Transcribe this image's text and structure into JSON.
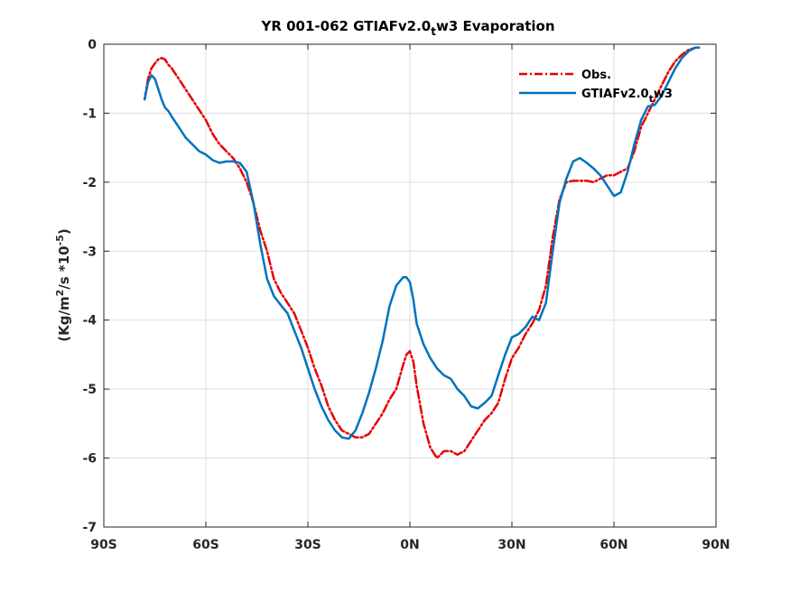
{
  "chart_data": {
    "type": "line",
    "title_main": "YR 001-062 GTIAFv2.0",
    "title_sub": "t",
    "title_tail": "w3 Evaporation",
    "ylabel_main": "(Kg/m",
    "ylabel_sup1": "2",
    "ylabel_mid": "/s *10",
    "ylabel_sup2": "-5",
    "ylabel_tail": ")",
    "xlim": [
      -90,
      90
    ],
    "ylim": [
      -7,
      0
    ],
    "xticks": [
      -90,
      -60,
      -30,
      0,
      30,
      60,
      90
    ],
    "xtick_labels": [
      "90S",
      "60S",
      "30S",
      "0N",
      "30N",
      "60N",
      "90N"
    ],
    "yticks": [
      -7,
      -6,
      -5,
      -4,
      -3,
      -2,
      -1,
      0
    ],
    "ytick_labels": [
      "-7",
      "-6",
      "-5",
      "-4",
      "-3",
      "-2",
      "-1",
      "0"
    ],
    "grid": true,
    "legend_position": "top-right",
    "series": [
      {
        "name": "Obs.",
        "color": "#e60000",
        "dash": "dash-dot",
        "x": [
          -78,
          -77,
          -76,
          -75,
          -74,
          -73,
          -72,
          -71,
          -70,
          -68,
          -66,
          -64,
          -62,
          -60,
          -58,
          -56,
          -54,
          -52,
          -50,
          -48,
          -46,
          -44,
          -42,
          -40,
          -38,
          -36,
          -34,
          -32,
          -30,
          -28,
          -26,
          -24,
          -22,
          -20,
          -18,
          -16,
          -14,
          -12,
          -10,
          -8,
          -6,
          -4,
          -2,
          -1,
          0,
          1,
          2,
          4,
          6,
          8,
          10,
          12,
          14,
          16,
          18,
          20,
          22,
          24,
          26,
          28,
          30,
          32,
          34,
          36,
          38,
          40,
          42,
          44,
          46,
          48,
          50,
          52,
          54,
          56,
          58,
          60,
          62,
          64,
          66,
          68,
          70,
          72,
          74,
          76,
          78,
          80,
          82,
          84,
          85
        ],
        "y": [
          -0.8,
          -0.5,
          -0.35,
          -0.28,
          -0.22,
          -0.2,
          -0.22,
          -0.3,
          -0.35,
          -0.5,
          -0.65,
          -0.8,
          -0.95,
          -1.1,
          -1.3,
          -1.45,
          -1.55,
          -1.65,
          -1.8,
          -2.0,
          -2.3,
          -2.7,
          -3.0,
          -3.4,
          -3.6,
          -3.75,
          -3.9,
          -4.15,
          -4.4,
          -4.7,
          -4.95,
          -5.25,
          -5.45,
          -5.6,
          -5.65,
          -5.7,
          -5.7,
          -5.65,
          -5.5,
          -5.35,
          -5.15,
          -5.0,
          -4.65,
          -4.5,
          -4.45,
          -4.6,
          -4.95,
          -5.5,
          -5.85,
          -6.0,
          -5.9,
          -5.9,
          -5.95,
          -5.9,
          -5.75,
          -5.6,
          -5.45,
          -5.35,
          -5.2,
          -4.85,
          -4.55,
          -4.4,
          -4.2,
          -4.05,
          -3.85,
          -3.5,
          -2.8,
          -2.25,
          -2.0,
          -1.98,
          -1.98,
          -1.98,
          -2.0,
          -1.95,
          -1.9,
          -1.9,
          -1.85,
          -1.8,
          -1.55,
          -1.2,
          -1.0,
          -0.8,
          -0.6,
          -0.4,
          -0.25,
          -0.15,
          -0.08,
          -0.05,
          -0.05
        ]
      },
      {
        "name": "GTIAFv2.0",
        "name_sub": "t",
        "name_tail": "w3",
        "color": "#0072bd",
        "dash": "solid",
        "x": [
          -78,
          -77,
          -76,
          -75,
          -74,
          -73,
          -72,
          -71,
          -70,
          -68,
          -66,
          -64,
          -62,
          -60,
          -58,
          -56,
          -54,
          -52,
          -50,
          -48,
          -46,
          -44,
          -42,
          -40,
          -38,
          -36,
          -34,
          -32,
          -30,
          -28,
          -26,
          -24,
          -22,
          -20,
          -18,
          -16,
          -14,
          -12,
          -10,
          -8,
          -6,
          -4,
          -2,
          -1,
          0,
          1,
          2,
          4,
          6,
          8,
          10,
          12,
          14,
          16,
          18,
          20,
          22,
          24,
          26,
          28,
          30,
          32,
          34,
          36,
          38,
          40,
          42,
          44,
          46,
          48,
          50,
          52,
          54,
          56,
          58,
          60,
          62,
          64,
          66,
          68,
          70,
          72,
          74,
          76,
          78,
          80,
          82,
          84,
          85
        ],
        "y": [
          -0.8,
          -0.55,
          -0.45,
          -0.5,
          -0.65,
          -0.8,
          -0.92,
          -0.97,
          -1.05,
          -1.2,
          -1.35,
          -1.45,
          -1.55,
          -1.6,
          -1.68,
          -1.72,
          -1.7,
          -1.7,
          -1.72,
          -1.85,
          -2.3,
          -2.9,
          -3.4,
          -3.65,
          -3.78,
          -3.9,
          -4.15,
          -4.4,
          -4.7,
          -5.0,
          -5.25,
          -5.45,
          -5.6,
          -5.7,
          -5.72,
          -5.6,
          -5.35,
          -5.05,
          -4.7,
          -4.3,
          -3.8,
          -3.5,
          -3.38,
          -3.38,
          -3.45,
          -3.7,
          -4.05,
          -4.35,
          -4.55,
          -4.7,
          -4.8,
          -4.85,
          -5.0,
          -5.1,
          -5.25,
          -5.28,
          -5.2,
          -5.1,
          -4.8,
          -4.5,
          -4.25,
          -4.2,
          -4.1,
          -3.95,
          -4.0,
          -3.75,
          -3.0,
          -2.3,
          -1.95,
          -1.7,
          -1.65,
          -1.72,
          -1.8,
          -1.9,
          -2.05,
          -2.2,
          -2.15,
          -1.85,
          -1.45,
          -1.1,
          -0.9,
          -0.88,
          -0.75,
          -0.55,
          -0.35,
          -0.2,
          -0.1,
          -0.05,
          -0.05
        ]
      }
    ]
  }
}
